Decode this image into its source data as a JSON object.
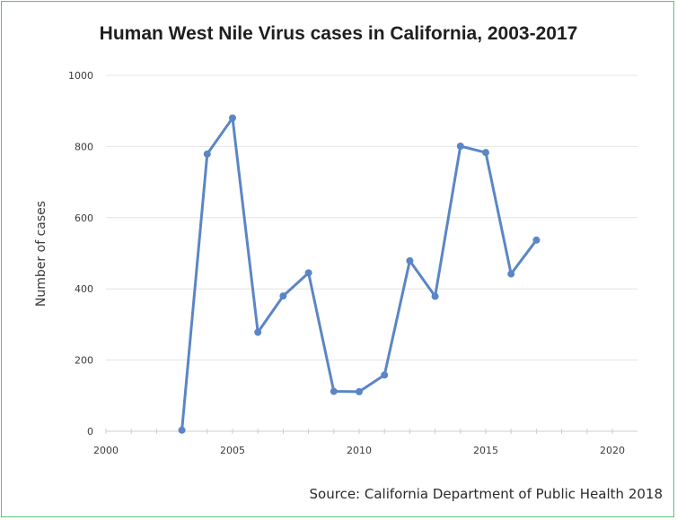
{
  "source_note": "Source: California Department of Public Health 2018",
  "colors": {
    "line": "#5b86c5",
    "grid": "#e4e4e4",
    "axis": "#cfcfcf",
    "border": "#58c47a"
  },
  "chart_data": {
    "type": "line",
    "title": "Human West Nile Virus cases in California, 2003-2017",
    "xlabel": "",
    "ylabel": "Number of cases",
    "xlim": [
      2000,
      2020
    ],
    "ylim": [
      0,
      1000
    ],
    "x_ticks": [
      2000,
      2005,
      2010,
      2015,
      2020
    ],
    "y_ticks": [
      0,
      200,
      400,
      600,
      800,
      1000
    ],
    "grid": "horizontal",
    "series": [
      {
        "x": [
          2003,
          2004,
          2005,
          2006,
          2007,
          2008,
          2009,
          2010,
          2011,
          2012,
          2013,
          2014,
          2015,
          2016,
          2017
        ],
        "values": [
          3,
          779,
          880,
          278,
          380,
          445,
          112,
          111,
          158,
          479,
          379,
          801,
          783,
          442,
          537
        ]
      }
    ]
  }
}
